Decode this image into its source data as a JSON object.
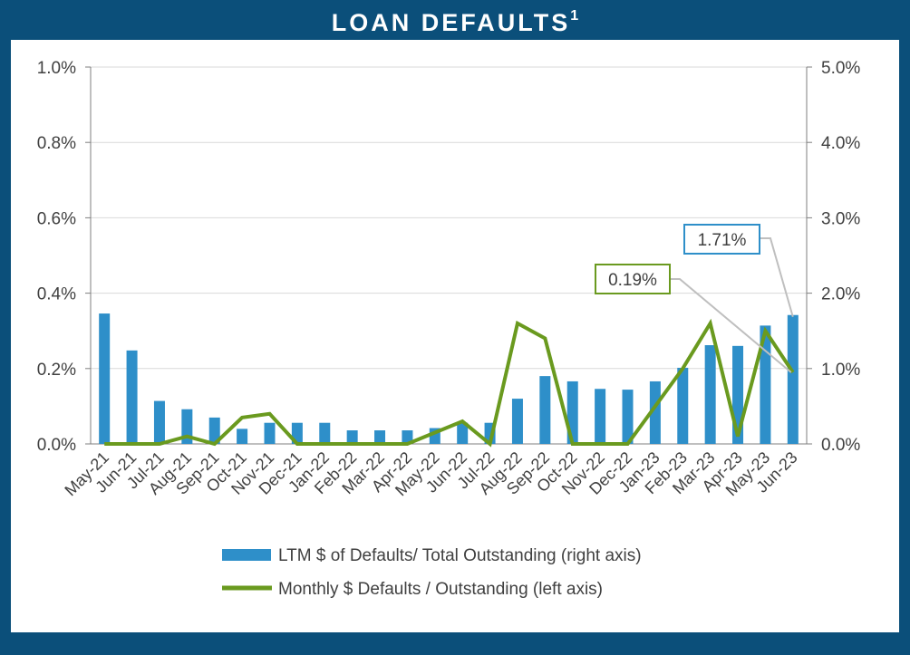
{
  "header": {
    "title": "LOAN DEFAULTS",
    "footnote_marker": "1"
  },
  "colors": {
    "frame": "#0b4f7a",
    "bar": "#2e8fc9",
    "line": "#6a9a1f",
    "grid": "#d9d9d9",
    "callout_bar_border": "#2e8fc9",
    "callout_line_border": "#6a9a1f"
  },
  "chart_data": {
    "type": "bar+line",
    "categories": [
      "May-21",
      "Jun-21",
      "Jul-21",
      "Aug-21",
      "Sep-21",
      "Oct-21",
      "Nov-21",
      "Dec-21",
      "Jan-22",
      "Feb-22",
      "Mar-22",
      "Apr-22",
      "May-22",
      "Jun-22",
      "Jul-22",
      "Aug-22",
      "Sep-22",
      "Oct-22",
      "Nov-22",
      "Dec-22",
      "Jan-23",
      "Feb-23",
      "Mar-23",
      "Apr-23",
      "May-23",
      "Jun-23"
    ],
    "left_axis": {
      "ticks": [
        "0.0%",
        "0.2%",
        "0.4%",
        "0.6%",
        "0.8%",
        "1.0%"
      ],
      "ylim": [
        0,
        1.0
      ]
    },
    "right_axis": {
      "ticks": [
        "0.0%",
        "1.0%",
        "2.0%",
        "3.0%",
        "4.0%",
        "5.0%"
      ],
      "ylim": [
        0,
        5.0
      ]
    },
    "series": [
      {
        "name": "LTM $ of Defaults/ Total Outstanding (right axis)",
        "kind": "bar",
        "axis": "right",
        "values": [
          1.73,
          1.24,
          0.57,
          0.46,
          0.35,
          0.2,
          0.28,
          0.28,
          0.28,
          0.18,
          0.18,
          0.18,
          0.21,
          0.28,
          0.28,
          0.6,
          0.9,
          0.83,
          0.73,
          0.72,
          0.83,
          1.01,
          1.31,
          1.3,
          1.57,
          1.71
        ]
      },
      {
        "name": "Monthly $ Defaults / Outstanding (left axis)",
        "kind": "line",
        "axis": "left",
        "values": [
          0.0,
          0.0,
          0.0,
          0.02,
          0.0,
          0.07,
          0.08,
          0.0,
          0.0,
          0.0,
          0.0,
          0.0,
          0.03,
          0.06,
          0.0,
          0.32,
          0.28,
          0.0,
          0.0,
          0.0,
          0.1,
          0.2,
          0.32,
          0.02,
          0.3,
          0.19
        ]
      }
    ],
    "annotations": [
      {
        "text": "1.71%",
        "series": "bar",
        "index": 25
      },
      {
        "text": "0.19%",
        "series": "line",
        "index": 25
      }
    ],
    "grid": true,
    "legend_position": "bottom"
  }
}
